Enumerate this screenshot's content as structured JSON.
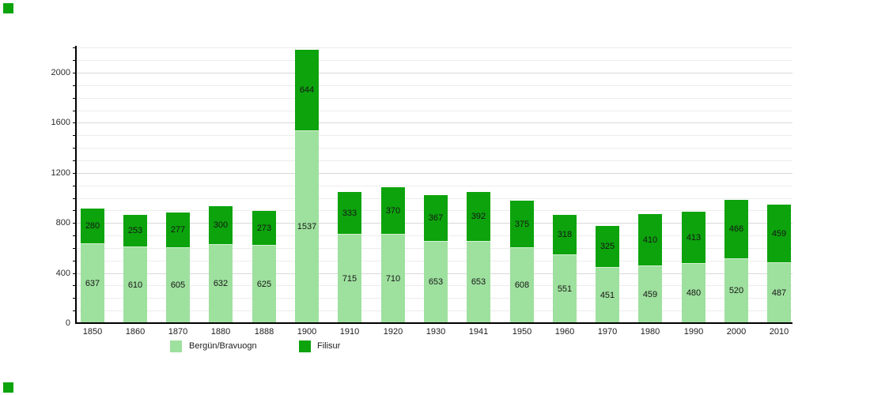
{
  "chart_data": {
    "type": "bar",
    "stacked": true,
    "title": "",
    "categories": [
      "1850",
      "1860",
      "1870",
      "1880",
      "1888",
      "1900",
      "1910",
      "1920",
      "1930",
      "1941",
      "1950",
      "1960",
      "1970",
      "1980",
      "1990",
      "2000",
      "2010"
    ],
    "series": [
      {
        "name": "Bergün/Bravuogn",
        "color": "#9EE09E",
        "values": [
          637,
          610,
          605,
          632,
          625,
          1537,
          715,
          710,
          653,
          653,
          608,
          551,
          451,
          459,
          480,
          520,
          487
        ]
      },
      {
        "name": "Filisur",
        "color": "#0CA30C",
        "values": [
          280,
          253,
          277,
          300,
          273,
          644,
          333,
          370,
          367,
          392,
          375,
          318,
          325,
          410,
          413,
          466,
          459
        ]
      }
    ],
    "xlabel": "",
    "ylabel": "",
    "ylim": [
      0,
      2214
    ],
    "ytick_labels": [
      "0",
      "400",
      "800",
      "1200",
      "1600",
      "2000"
    ],
    "yticks_labeled": [
      0,
      400,
      800,
      1200,
      1600,
      2000
    ],
    "grid": true,
    "grid_interval": 100,
    "major_interval": 400,
    "legend_position": "bottom",
    "bar_value_labels": true,
    "axis_color": "#000000",
    "minor_grid_color": "#ececec",
    "major_grid_color": "#d8d8d8",
    "value_label_color": "#161616",
    "corner_marker_color": "#0CA30C"
  }
}
